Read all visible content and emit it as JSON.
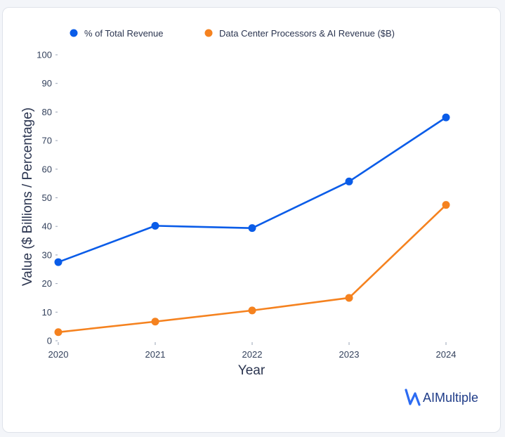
{
  "chart_data": {
    "type": "line",
    "categories": [
      "2020",
      "2021",
      "2022",
      "2023",
      "2024"
    ],
    "series": [
      {
        "name": "% of Total Revenue",
        "values": [
          27.5,
          40.2,
          39.4,
          55.7,
          78.1
        ],
        "color": "#0a5ce8"
      },
      {
        "name": "Data Center Processors & AI Revenue ($B)",
        "values": [
          3.0,
          6.7,
          10.6,
          15.0,
          47.5
        ],
        "color": "#f5821f"
      }
    ],
    "xlabel": "Year",
    "ylabel": "Value ($ Billions / Percentage)",
    "ylim": [
      0,
      100
    ],
    "yticks": [
      "0",
      "10",
      "20",
      "30",
      "40",
      "50",
      "60",
      "70",
      "80",
      "90",
      "100"
    ],
    "grid": false,
    "legend_position": "top"
  },
  "branding": {
    "logo_text": "AIMultiple",
    "logo_color": "#1f3c88",
    "logo_mark_icon": "aimultiple-logo-icon",
    "logo_mark_color": "#2c6bf2"
  }
}
